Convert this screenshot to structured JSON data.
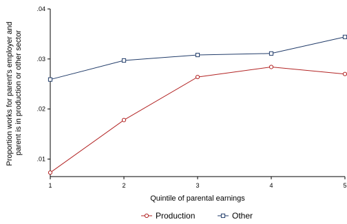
{
  "chart_data": {
    "type": "line",
    "x": [
      1,
      2,
      3,
      4,
      5
    ],
    "xlabel": "Quintile of parental earnings",
    "ylabel_lines": [
      "Proportion works for parent's employer and",
      "parent is in production or other sector"
    ],
    "xlim": [
      1,
      5
    ],
    "ylim": [
      0.0065,
      0.04
    ],
    "x_ticks": [
      1,
      2,
      3,
      4,
      5
    ],
    "x_tick_labels": [
      "1",
      "2",
      "3",
      "4",
      "5"
    ],
    "y_ticks": [
      0.01,
      0.02,
      0.03,
      0.04
    ],
    "y_tick_labels": [
      ".01",
      ".02",
      ".03",
      ".04"
    ],
    "grid": false,
    "legend_position": "bottom",
    "series": [
      {
        "name": "Production",
        "values": [
          0.0073,
          0.0178,
          0.0264,
          0.0284,
          0.027
        ],
        "color": "#b22222",
        "marker": "circle"
      },
      {
        "name": "Other",
        "values": [
          0.0259,
          0.0297,
          0.0308,
          0.0311,
          0.0344
        ],
        "color": "#1f3a68",
        "marker": "square"
      }
    ]
  }
}
